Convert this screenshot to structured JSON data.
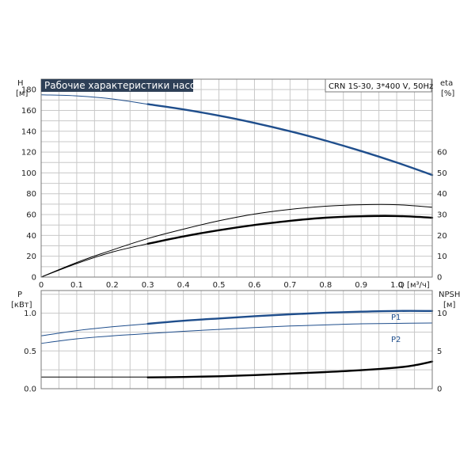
{
  "chart_data": [
    {
      "type": "line",
      "title": "Рабочие характеристики насоса",
      "model": "CRN 1S-30, 3*400 V, 50Hz",
      "ylabel_left": "H",
      "yunit_left": "[м]",
      "ylabel_right": "eta",
      "yunit_right": "[%]",
      "xlabel": "Q [м³/ч]",
      "xlim": [
        0,
        1.1
      ],
      "ylim_left": [
        0,
        190
      ],
      "ylim_right": [
        0,
        95
      ],
      "x_ticks": [
        "0",
        "0.1",
        "0.2",
        "0.3",
        "0.4",
        "0.5",
        "0.6",
        "0.7",
        "0.8",
        "0.9",
        "1.0"
      ],
      "y_ticks_left": [
        "0",
        "20",
        "40",
        "60",
        "80",
        "100",
        "120",
        "140",
        "160",
        "180"
      ],
      "y_ticks_right": [
        "0",
        "10",
        "20",
        "30",
        "40",
        "50",
        "60"
      ],
      "series": [
        {
          "axis": "left",
          "color": "#1f4e8c",
          "x_start_bold": 0.3,
          "x": [
            0,
            0.1,
            0.2,
            0.3,
            0.4,
            0.5,
            0.6,
            0.7,
            0.8,
            0.9,
            1.0,
            1.1
          ],
          "values": [
            175,
            174,
            171,
            166,
            161,
            155,
            148,
            140,
            131,
            121,
            110,
            98
          ]
        },
        {
          "axis": "right",
          "color": "#000000",
          "x_start_bold": 0.3,
          "x": [
            0,
            0.1,
            0.2,
            0.3,
            0.4,
            0.5,
            0.6,
            0.7,
            0.8,
            0.9,
            1.0,
            1.1
          ],
          "values": [
            0,
            6.5,
            12,
            16,
            19.5,
            22.5,
            25,
            27,
            28.5,
            29.2,
            29.3,
            28.5
          ]
        },
        {
          "axis": "left",
          "color": "#000000",
          "x_start_bold": 1.2,
          "x": [
            0,
            0.1,
            0.2,
            0.3,
            0.4,
            0.5,
            0.6,
            0.7,
            0.8,
            0.9,
            1.0,
            1.1
          ],
          "values": [
            0,
            14,
            26,
            37,
            46,
            54,
            60.5,
            65,
            68,
            69.5,
            69.5,
            67
          ]
        }
      ]
    },
    {
      "type": "line",
      "ylabel_left": "P",
      "yunit_left": "[кВт]",
      "ylabel_right": "NPSH",
      "yunit_right": "[м]",
      "xlim": [
        0,
        1.1
      ],
      "ylim_left": [
        0,
        1.3
      ],
      "ylim_right": [
        0,
        13
      ],
      "y_ticks_left": [
        "0.0",
        "0.5",
        "1.0"
      ],
      "y_ticks_right": [
        "0",
        "5",
        "10"
      ],
      "series": [
        {
          "name": "P1",
          "axis": "left",
          "color": "#1f4e8c",
          "x_start_bold": 0.3,
          "x": [
            0,
            0.1,
            0.2,
            0.3,
            0.4,
            0.5,
            0.6,
            0.7,
            0.8,
            0.9,
            1.0,
            1.1
          ],
          "values": [
            0.7,
            0.77,
            0.82,
            0.86,
            0.9,
            0.93,
            0.96,
            0.985,
            1.005,
            1.02,
            1.03,
            1.03
          ]
        },
        {
          "name": "P2",
          "axis": "left",
          "color": "#1f4e8c",
          "x_start_bold": 1.2,
          "x": [
            0,
            0.1,
            0.2,
            0.3,
            0.4,
            0.5,
            0.6,
            0.7,
            0.8,
            0.9,
            1.0,
            1.1
          ],
          "values": [
            0.6,
            0.66,
            0.7,
            0.73,
            0.76,
            0.785,
            0.81,
            0.83,
            0.845,
            0.86,
            0.865,
            0.87
          ]
        },
        {
          "axis": "right",
          "color": "#000000",
          "x_start_bold": 0.3,
          "x": [
            0.3,
            0.4,
            0.5,
            0.6,
            0.7,
            0.8,
            0.9,
            1.0,
            1.05,
            1.1
          ],
          "values": [
            1.5,
            1.55,
            1.65,
            1.8,
            2.0,
            2.2,
            2.45,
            2.8,
            3.1,
            3.6
          ]
        },
        {
          "axis": "right",
          "color": "#000000",
          "x_start_bold": 9,
          "x": [
            0,
            0.3
          ],
          "values": [
            1.55,
            1.55
          ]
        }
      ]
    }
  ]
}
